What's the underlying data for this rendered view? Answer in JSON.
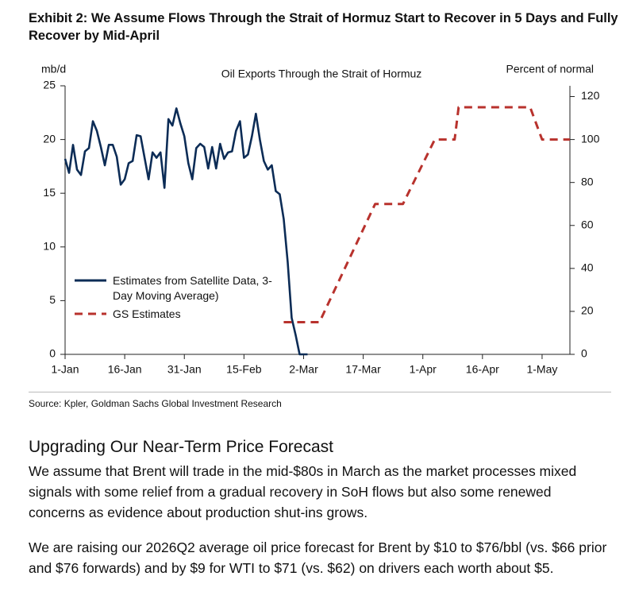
{
  "exhibit_title": "Exhibit 2: We Assume Flows Through the Strait of Hormuz Start to Recover in 5 Days and Fully Recover by Mid-April",
  "chart_data": {
    "type": "line",
    "title": "Oil Exports Through the Strait of Hormuz",
    "y_label": "mb/d",
    "y2_label": "Percent of normal",
    "xlim": [
      0,
      127
    ],
    "xticks": [
      {
        "value": 0,
        "label": "1-Jan"
      },
      {
        "value": 15,
        "label": "16-Jan"
      },
      {
        "value": 30,
        "label": "31-Jan"
      },
      {
        "value": 45,
        "label": "15-Feb"
      },
      {
        "value": 60,
        "label": "2-Mar"
      },
      {
        "value": 75,
        "label": "17-Mar"
      },
      {
        "value": 90,
        "label": "1-Apr"
      },
      {
        "value": 105,
        "label": "16-Apr"
      },
      {
        "value": 120,
        "label": "1-May"
      }
    ],
    "ylim": [
      0,
      25
    ],
    "yticks": [
      0,
      5,
      10,
      15,
      20,
      25
    ],
    "y2lim": [
      0,
      125
    ],
    "y2ticks": [
      0,
      20,
      40,
      60,
      80,
      100,
      120
    ],
    "legend": "center-left",
    "series": [
      {
        "name": "Estimates from Satellite Data, 3-Day Moving Average)",
        "color": "#0c2c56",
        "line_style": "solid",
        "x": [
          0,
          1,
          2,
          3,
          4,
          5,
          6,
          7,
          8,
          9,
          10,
          11,
          12,
          13,
          14,
          15,
          16,
          17,
          18,
          19,
          20,
          21,
          22,
          23,
          24,
          25,
          26,
          27,
          28,
          29,
          30,
          31,
          32,
          33,
          34,
          35,
          36,
          37,
          38,
          39,
          40,
          41,
          42,
          43,
          44,
          45,
          46,
          47,
          48,
          49,
          50,
          51,
          52,
          53,
          54,
          55,
          56,
          57,
          58,
          59,
          61
        ],
        "values": [
          18.2,
          16.9,
          19.5,
          17.2,
          16.7,
          18.9,
          19.2,
          21.7,
          20.8,
          19.3,
          17.6,
          19.5,
          19.5,
          18.4,
          15.8,
          16.3,
          17.8,
          18.0,
          20.4,
          20.3,
          18.3,
          16.3,
          18.8,
          18.3,
          18.8,
          15.5,
          21.9,
          21.3,
          22.9,
          21.5,
          20.3,
          17.8,
          16.3,
          19.2,
          19.6,
          19.3,
          17.3,
          19.3,
          17.3,
          19.6,
          18.2,
          18.8,
          18.9,
          20.8,
          21.7,
          18.3,
          18.6,
          20.3,
          22.4,
          20.0,
          18.0,
          17.2,
          17.6,
          15.2,
          14.9,
          12.6,
          8.6,
          3.4,
          1.8,
          0,
          0
        ]
      },
      {
        "name": "GS Estimates",
        "color": "#b8322d",
        "line_style": "dashed",
        "axis": "y2",
        "x": [
          55,
          64,
          78,
          85,
          93,
          98,
          99,
          117,
          120,
          127
        ],
        "values": [
          15,
          15,
          70,
          70,
          100,
          100,
          115,
          115,
          100,
          100
        ]
      }
    ]
  },
  "source": "Source: Kpler, Goldman Sachs Global Investment Research",
  "section": {
    "heading": "Upgrading Our Near-Term Price Forecast",
    "paragraphs": [
      "We assume that Brent will trade in the mid-$80s in March as the market processes mixed signals with some relief from a gradual recovery in SoH flows but also some renewed concerns as evidence about production shut-ins grows.",
      "We are raising our 2026Q2 average oil price forecast for Brent by $10 to $76/bbl (vs. $66 prior and $76 forwards) and by $9 for WTI to $71 (vs. $62) on drivers each worth about $5."
    ]
  }
}
